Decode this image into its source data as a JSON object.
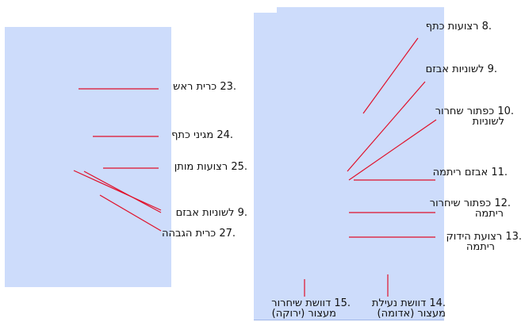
{
  "colors": {
    "panel": "#cddcfb",
    "leader": "#e0102a",
    "text": "#111111"
  },
  "left_panel_labels": [
    {
      "id": "l23",
      "text": ".23 כרית ראש"
    },
    {
      "id": "l24",
      "text": ".24 מגיני כתף"
    },
    {
      "id": "l25",
      "text": ".25 רצועות מותן"
    },
    {
      "id": "l9b",
      "text": ".9 לשוניות אבזם"
    },
    {
      "id": "l27",
      "text": ".27 כרית הגבהה"
    }
  ],
  "right_panel_labels": [
    {
      "id": "r8",
      "text": ".8 רצועות כתף"
    },
    {
      "id": "r9",
      "text": ".9 לשוניות אבזם"
    },
    {
      "id": "r10",
      "text": ".10 כפתור שחרור",
      "text2": "לשוניות"
    },
    {
      "id": "r11",
      "text": ".11 אבזם ריתמה"
    },
    {
      "id": "r12",
      "text": ".12 כפתור שיחרור",
      "text2": "ריתמה"
    },
    {
      "id": "r13",
      "text": ".13 רצועת הידוק",
      "text2": "ריתמה"
    },
    {
      "id": "r15",
      "text": ".15 דוושת שיחרור",
      "text2": "מעצור (ירוקה)"
    },
    {
      "id": "r14",
      "text": ".14 דוושת נעילת",
      "text2": "מעצור (אדומה)"
    }
  ]
}
